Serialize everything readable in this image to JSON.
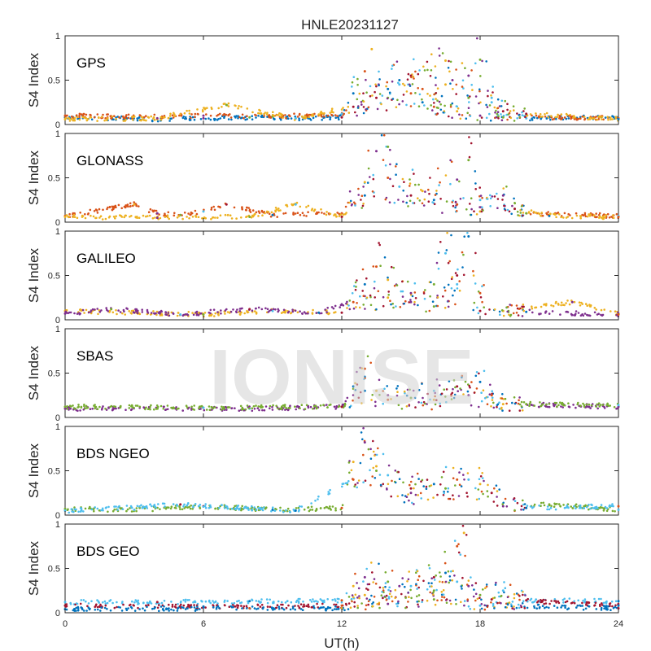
{
  "figure": {
    "title": "HNLE20231127",
    "watermark": "IONISE",
    "xlabel": "UT(h)",
    "ylabel": "S4 Index"
  },
  "colors": [
    "#0072BD",
    "#D95319",
    "#EDB120",
    "#7E2F8E",
    "#77AC30",
    "#4DBEEE",
    "#A2142F"
  ],
  "chart_data": {
    "type": "scatter",
    "x_unit": "hours UT",
    "xlim": [
      0,
      24
    ],
    "xticks": [
      0,
      6,
      12,
      18,
      24
    ],
    "ylim": [
      0,
      1
    ],
    "yticks": [
      0,
      0.5,
      1
    ],
    "panels": [
      {
        "label": "GPS",
        "series": [
          {
            "x": [
              0,
              2,
              4,
              6,
              8,
              10,
              12,
              12.5,
              13,
              13.3,
              13.6,
              14,
              14.5,
              15,
              15.5,
              16,
              17,
              18,
              19,
              20,
              22,
              24
            ],
            "y": [
              0.08,
              0.07,
              0.06,
              0.07,
              0.08,
              0.07,
              0.08,
              0.35,
              0.6,
              0.85,
              0.45,
              0.3,
              0.45,
              0.55,
              0.25,
              0.2,
              0.15,
              0.1,
              0.08,
              0.07,
              0.08,
              0.07
            ]
          },
          {
            "x": [
              0,
              3,
              6,
              9,
              12,
              13.5,
              14.5,
              15.5,
              16.5,
              17.5,
              18,
              18.5,
              19,
              21,
              24
            ],
            "y": [
              0.1,
              0.09,
              0.1,
              0.09,
              0.12,
              0.3,
              0.5,
              0.4,
              0.45,
              0.55,
              0.73,
              0.3,
              0.15,
              0.08,
              0.07
            ]
          },
          {
            "x": [
              0,
              4,
              7,
              10,
              12.5,
              14,
              15,
              16.5,
              16.8,
              17.5,
              18.5,
              20,
              24
            ],
            "y": [
              0.06,
              0.07,
              0.22,
              0.07,
              0.2,
              0.4,
              0.35,
              0.72,
              0.5,
              0.3,
              0.25,
              0.12,
              0.06
            ]
          }
        ]
      },
      {
        "label": "GLONASS",
        "series": [
          {
            "x": [
              0,
              3,
              4,
              5,
              6,
              7,
              9,
              12,
              13,
              13.5,
              14,
              14.5,
              15,
              16,
              17,
              18,
              19,
              20,
              24
            ],
            "y": [
              0.07,
              0.2,
              0.1,
              0.08,
              0.12,
              0.2,
              0.08,
              0.1,
              0.45,
              0.8,
              0.85,
              0.4,
              0.3,
              0.25,
              0.2,
              0.12,
              0.3,
              0.1,
              0.07
            ]
          },
          {
            "x": [
              0,
              4,
              8,
              10,
              12,
              13,
              14,
              15.5,
              17,
              17.5,
              18,
              19.5,
              21,
              24
            ],
            "y": [
              0.06,
              0.05,
              0.06,
              0.2,
              0.06,
              0.3,
              0.5,
              0.35,
              0.48,
              0.7,
              0.25,
              0.15,
              0.07,
              0.06
            ]
          }
        ]
      },
      {
        "label": "GALILEO",
        "series": [
          {
            "x": [
              0,
              3,
              6,
              9,
              12,
              13,
              13.5,
              14,
              15,
              16,
              16.5,
              17,
              17.5,
              18,
              19,
              22,
              24
            ],
            "y": [
              0.1,
              0.08,
              0.06,
              0.1,
              0.08,
              0.4,
              0.6,
              0.45,
              0.2,
              0.4,
              0.75,
              0.5,
              0.94,
              0.3,
              0.1,
              0.2,
              0.07
            ]
          },
          {
            "x": [
              0,
              2,
              5,
              8,
              11,
              12.5,
              14,
              15,
              16,
              17,
              18,
              20,
              24
            ],
            "y": [
              0.07,
              0.12,
              0.06,
              0.12,
              0.08,
              0.2,
              0.25,
              0.3,
              0.15,
              0.4,
              0.1,
              0.09,
              0.06
            ]
          }
        ]
      },
      {
        "label": "SBAS",
        "series": [
          {
            "x": [
              0,
              4,
              8,
              12,
              12.5,
              13,
              13.5,
              14,
              15,
              16,
              17,
              18,
              18.5,
              19,
              24
            ],
            "y": [
              0.1,
              0.1,
              0.1,
              0.12,
              0.35,
              0.55,
              0.3,
              0.25,
              0.22,
              0.3,
              0.35,
              0.4,
              0.25,
              0.15,
              0.12
            ]
          },
          {
            "x": [
              0,
              6,
              12,
              13,
              14,
              16,
              17.5,
              20,
              24
            ],
            "y": [
              0.12,
              0.11,
              0.12,
              0.3,
              0.2,
              0.2,
              0.25,
              0.15,
              0.14
            ]
          }
        ]
      },
      {
        "label": "BDS NGEO",
        "series": [
          {
            "x": [
              0,
              3,
              6,
              9,
              12,
              12.5,
              13,
              13.5,
              14,
              15,
              16,
              17,
              18,
              19,
              21,
              24
            ],
            "y": [
              0.07,
              0.06,
              0.1,
              0.06,
              0.08,
              0.6,
              0.82,
              0.5,
              0.45,
              0.3,
              0.35,
              0.4,
              0.35,
              0.1,
              0.12,
              0.06
            ]
          },
          {
            "x": [
              0,
              5,
              10,
              12.5,
              13.5,
              15,
              16.5,
              17.5,
              18.5,
              20,
              24
            ],
            "y": [
              0.05,
              0.12,
              0.05,
              0.4,
              0.55,
              0.25,
              0.3,
              0.4,
              0.25,
              0.08,
              0.1
            ]
          }
        ]
      },
      {
        "label": "BDS GEO",
        "series": [
          {
            "x": [
              0,
              4,
              8,
              12,
              12.5,
              13,
              14,
              15,
              16,
              16.5,
              17,
              17.3,
              17.5,
              18,
              19,
              20,
              24
            ],
            "y": [
              0.12,
              0.12,
              0.13,
              0.14,
              0.3,
              0.4,
              0.35,
              0.3,
              0.4,
              0.45,
              0.75,
              0.9,
              0.3,
              0.2,
              0.25,
              0.14,
              0.13
            ]
          },
          {
            "x": [
              0,
              6,
              12,
              13,
              14.5,
              16,
              17,
              18.5,
              24
            ],
            "y": [
              0.08,
              0.07,
              0.08,
              0.2,
              0.3,
              0.25,
              0.35,
              0.15,
              0.08
            ]
          },
          {
            "x": [
              0,
              8,
              12,
              14,
              16,
              18,
              24
            ],
            "y": [
              0.04,
              0.05,
              0.05,
              0.1,
              0.15,
              0.08,
              0.05
            ]
          }
        ]
      }
    ]
  }
}
